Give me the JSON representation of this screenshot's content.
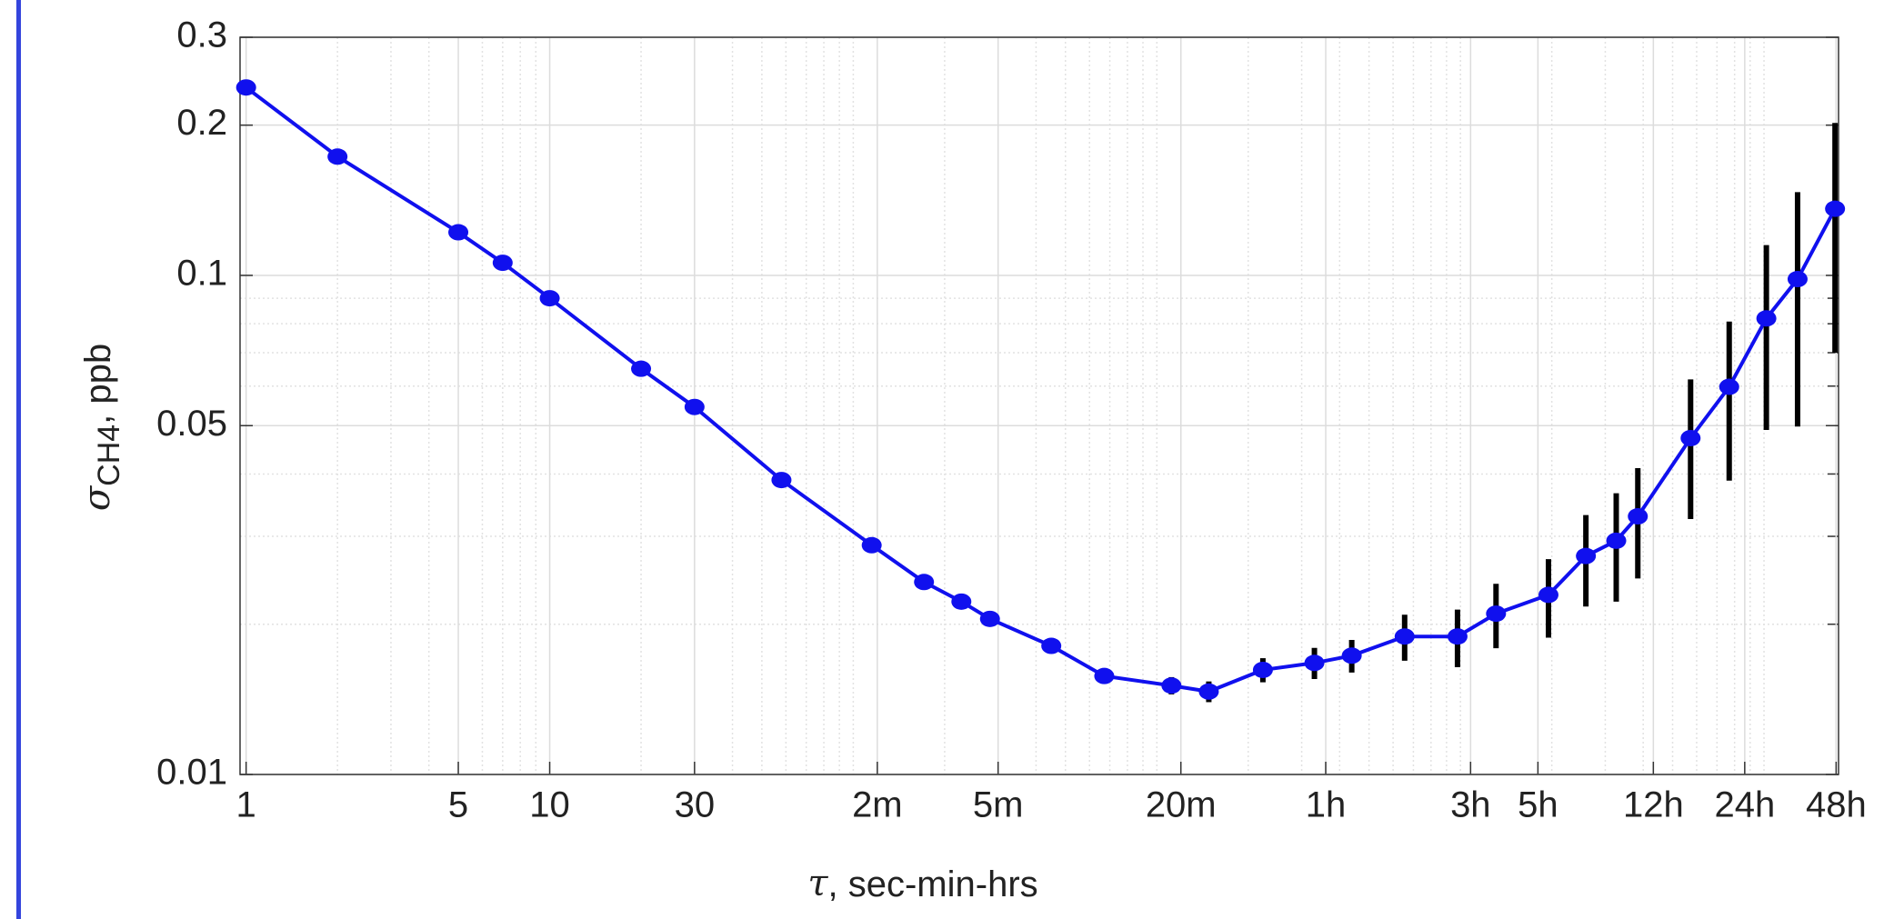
{
  "chart_data": {
    "type": "errorbar_line",
    "xlabel": {
      "symbol": "τ",
      "text": ", sec-min-hrs"
    },
    "ylabel": {
      "symbol": "σ",
      "subscript": "CH4",
      "text": ", ppb"
    },
    "x": [
      1,
      2,
      5,
      7,
      10,
      20,
      30,
      58,
      115,
      171,
      227,
      282,
      449,
      671,
      1117,
      1483,
      2235,
      3304,
      4385,
      6550,
      9780,
      13100,
      19500,
      25900,
      32600,
      38400,
      57300,
      76800,
      101800,
      129000,
      171400
    ],
    "series": [
      {
        "color": "#1010ee",
        "error_color": "#000000",
        "values": [
          0.238,
          0.173,
          0.122,
          0.106,
          0.09,
          0.065,
          0.0545,
          0.0389,
          0.0288,
          0.0243,
          0.0222,
          0.0205,
          0.0181,
          0.01575,
          0.01507,
          0.01466,
          0.0162,
          0.01673,
          0.0173,
          0.0189,
          0.0189,
          0.021,
          0.0229,
          0.0274,
          0.0294,
          0.0329,
          0.0472,
          0.0598,
          0.082,
          0.0983,
          0.136
        ],
        "errors": [
          0.0001,
          0.0001,
          0.0001,
          0.0001,
          0.0001,
          0.0002,
          0.0002,
          0.0002,
          0.0002,
          0.0003,
          0.0003,
          0.0003,
          0.0004,
          0.0005,
          0.0006,
          0.0007,
          0.0009,
          0.0012,
          0.0013,
          0.002,
          0.0025,
          0.0031,
          0.0041,
          0.0057,
          0.0072,
          0.0082,
          0.0147,
          0.021,
          0.033,
          0.0485,
          0.066
        ]
      }
    ],
    "xscale": "log",
    "yscale": "log",
    "xlim": [
      0.955,
      176000
    ],
    "ylim": [
      0.01,
      0.3
    ],
    "xticks": [
      1,
      5,
      10,
      30,
      {
        "value": 120,
        "label": "2m"
      },
      {
        "value": 300,
        "label": "5m"
      },
      {
        "value": 1200,
        "label": "20m"
      },
      {
        "value": 3600,
        "label": "1h"
      },
      {
        "value": 10800,
        "label": "3h"
      },
      {
        "value": 18000,
        "label": "5h"
      },
      {
        "value": 43200,
        "label": "12h"
      },
      {
        "value": 86400,
        "label": "24h"
      },
      {
        "value": 172800,
        "label": "48h"
      }
    ],
    "yticks": [
      0.01,
      0.05,
      0.1,
      0.2,
      0.3
    ],
    "minor_xticks": [
      2,
      3,
      4,
      6,
      7,
      8,
      9,
      20,
      40,
      50,
      60,
      70,
      80,
      90,
      100,
      200,
      400,
      500,
      600,
      700,
      800,
      900,
      1000,
      2000,
      3000,
      4000,
      5000,
      6000,
      7000,
      8000,
      9000,
      10000,
      20000,
      30000,
      40000,
      50000,
      60000,
      70000,
      80000,
      90000,
      100000
    ],
    "minor_yticks": [
      0.02,
      0.03,
      0.04,
      0.06,
      0.07,
      0.08,
      0.09
    ],
    "grid": true
  }
}
